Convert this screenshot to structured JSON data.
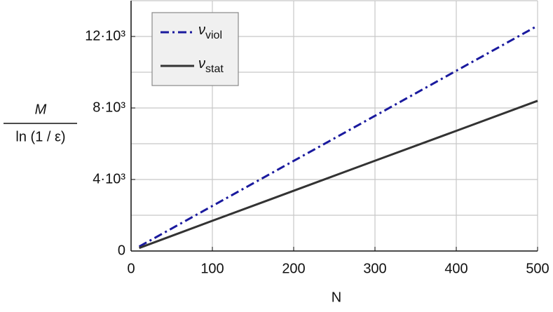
{
  "chart_data": {
    "type": "line",
    "x_label": "N",
    "y_label_numerator": "M",
    "y_label_denominator": "ln (1 / ε)",
    "x": [
      10,
      100,
      200,
      300,
      400,
      500
    ],
    "series": [
      {
        "name": "ν",
        "subscript": "viol",
        "color": "#1a1a9e",
        "dash": "dashdot",
        "values": [
          250,
          2520,
          5040,
          7560,
          10080,
          12600
        ]
      },
      {
        "name": "ν",
        "subscript": "stat",
        "color": "#333333",
        "dash": "solid",
        "values": [
          170,
          1690,
          3370,
          5050,
          6720,
          8400
        ]
      }
    ],
    "xlim": [
      0,
      500
    ],
    "ylim": [
      0,
      14000
    ],
    "xticks": [
      0,
      100,
      200,
      300,
      400,
      500
    ],
    "yticks": [
      0,
      {
        "value": 4000,
        "label": "4·10³"
      },
      {
        "value": 8000,
        "label": "8·10³"
      },
      {
        "value": 12000,
        "label": "12·10³"
      }
    ],
    "ygrid": [
      2000,
      4000,
      6000,
      8000,
      10000,
      12000,
      14000
    ],
    "grid": true,
    "legend": "upper left"
  }
}
